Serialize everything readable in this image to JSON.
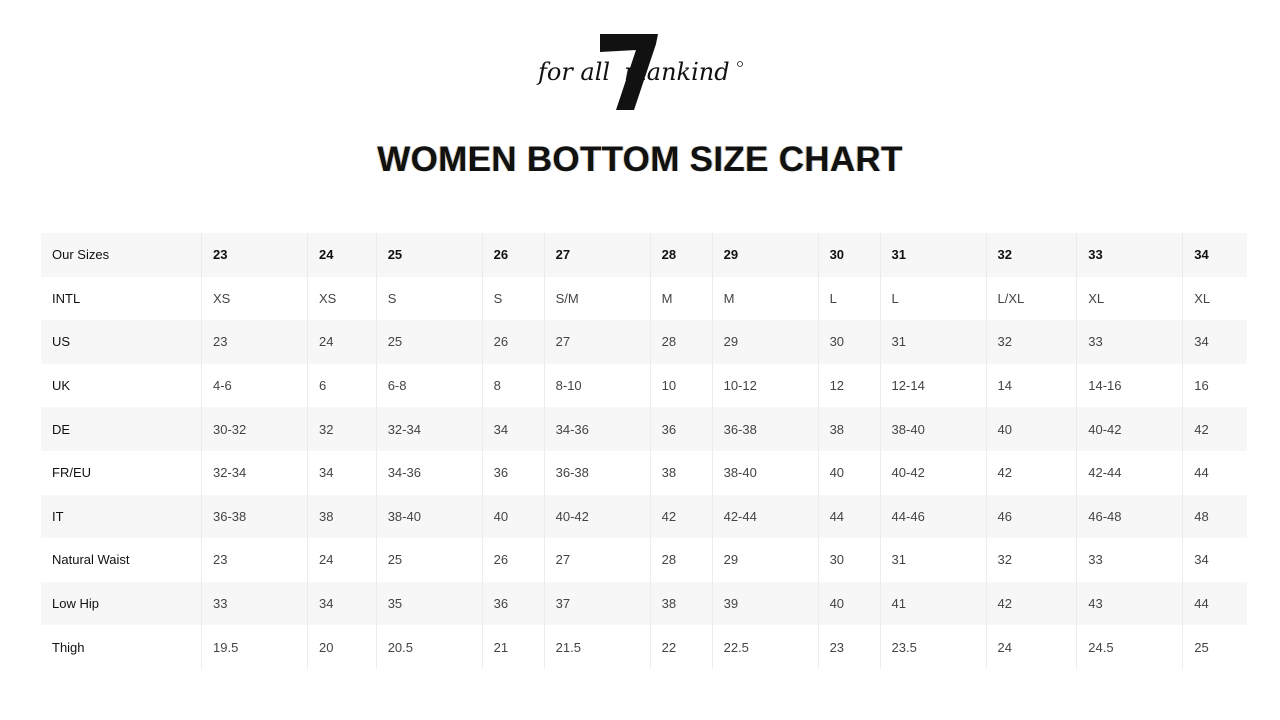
{
  "brand": {
    "logo_text": "7 for all mankind"
  },
  "title": "WOMEN BOTTOM SIZE CHART",
  "table": {
    "rows": [
      {
        "label": "Our Sizes",
        "values": [
          "23",
          "24",
          "25",
          "26",
          "27",
          "28",
          "29",
          "30",
          "31",
          "32",
          "33",
          "34"
        ]
      },
      {
        "label": "INTL",
        "values": [
          "XS",
          "XS",
          "S",
          "S",
          "S/M",
          "M",
          "M",
          "L",
          "L",
          "L/XL",
          "XL",
          "XL"
        ]
      },
      {
        "label": "US",
        "values": [
          "23",
          "24",
          "25",
          "26",
          "27",
          "28",
          "29",
          "30",
          "31",
          "32",
          "33",
          "34"
        ]
      },
      {
        "label": "UK",
        "values": [
          "4-6",
          "6",
          "6-8",
          "8",
          "8-10",
          "10",
          "10-12",
          "12",
          "12-14",
          "14",
          "14-16",
          "16"
        ]
      },
      {
        "label": "DE",
        "values": [
          "30-32",
          "32",
          "32-34",
          "34",
          "34-36",
          "36",
          "36-38",
          "38",
          "38-40",
          "40",
          "40-42",
          "42"
        ]
      },
      {
        "label": "FR/EU",
        "values": [
          "32-34",
          "34",
          "34-36",
          "36",
          "36-38",
          "38",
          "38-40",
          "40",
          "40-42",
          "42",
          "42-44",
          "44"
        ]
      },
      {
        "label": "IT",
        "values": [
          "36-38",
          "38",
          "38-40",
          "40",
          "40-42",
          "42",
          "42-44",
          "44",
          "44-46",
          "46",
          "46-48",
          "48"
        ]
      },
      {
        "label": "Natural Waist",
        "values": [
          "23",
          "24",
          "25",
          "26",
          "27",
          "28",
          "29",
          "30",
          "31",
          "32",
          "33",
          "34"
        ]
      },
      {
        "label": "Low Hip",
        "values": [
          "33",
          "34",
          "35",
          "36",
          "37",
          "38",
          "39",
          "40",
          "41",
          "42",
          "43",
          "44"
        ]
      },
      {
        "label": "Thigh",
        "values": [
          "19.5",
          "20",
          "20.5",
          "21",
          "21.5",
          "22",
          "22.5",
          "23",
          "23.5",
          "24",
          "24.5",
          "25"
        ]
      }
    ]
  }
}
